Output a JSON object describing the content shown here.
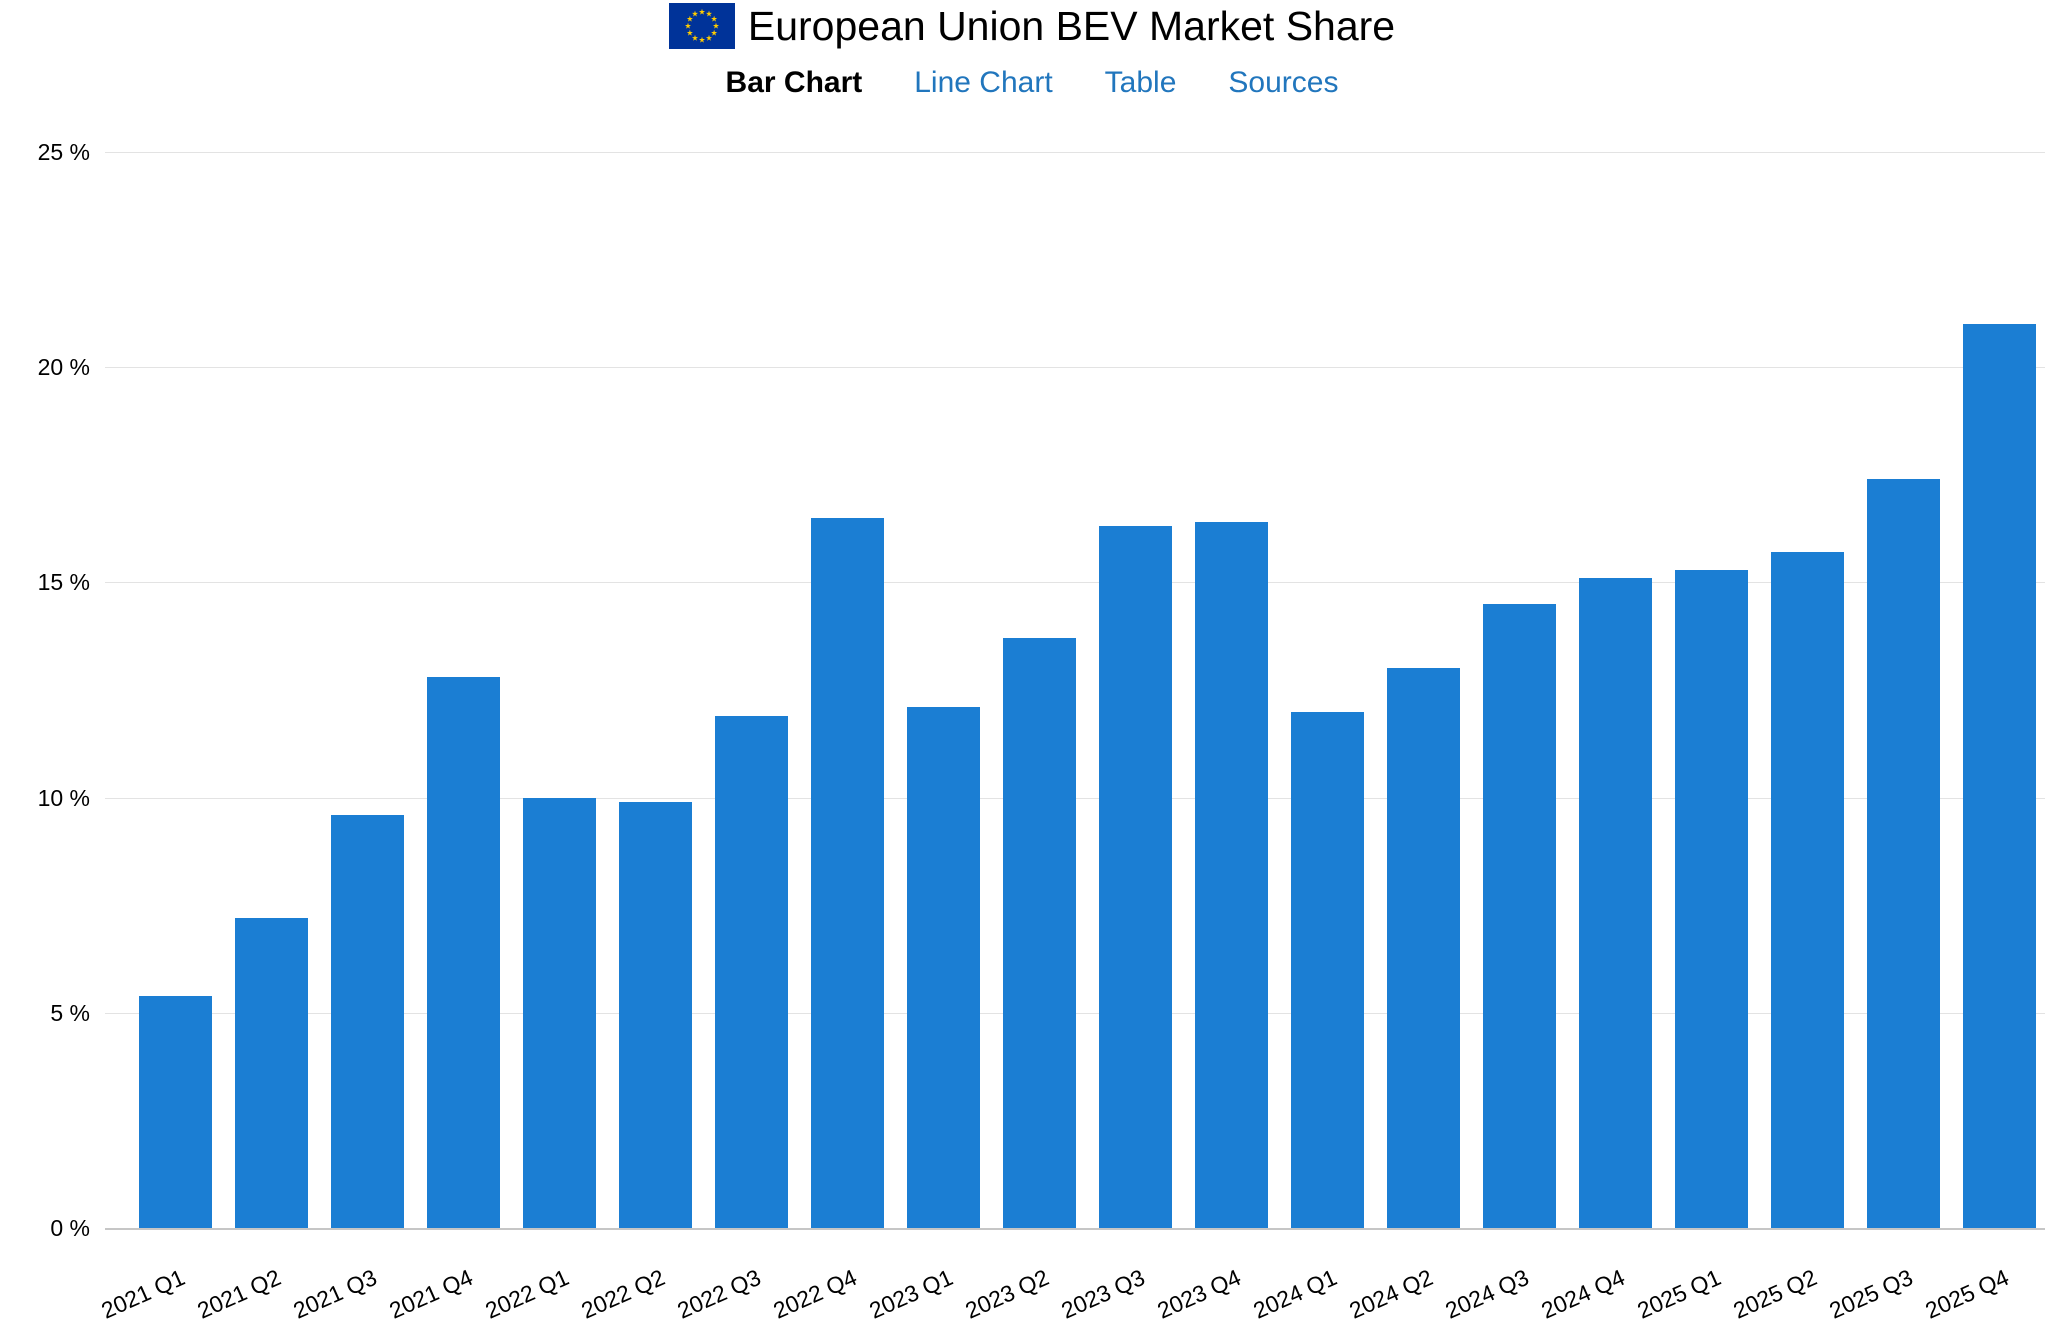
{
  "header": {
    "title": "European Union BEV Market Share"
  },
  "nav": {
    "items": [
      {
        "label": "Bar Chart",
        "active": true
      },
      {
        "label": "Line Chart",
        "active": false
      },
      {
        "label": "Table",
        "active": false
      },
      {
        "label": "Sources",
        "active": false
      }
    ],
    "link_color": "#2176bd",
    "active_color": "#000000"
  },
  "chart_data": {
    "type": "bar",
    "title": "European Union BEV Market Share",
    "categories": [
      "2021 Q1",
      "2021 Q2",
      "2021 Q3",
      "2021 Q4",
      "2022 Q1",
      "2022 Q2",
      "2022 Q3",
      "2022 Q4",
      "2023 Q1",
      "2023 Q2",
      "2023 Q3",
      "2023 Q4",
      "2024 Q1",
      "2024 Q2",
      "2024 Q3",
      "2024 Q4",
      "2025 Q1",
      "2025 Q2",
      "2025 Q3",
      "2025 Q4"
    ],
    "values": [
      5.4,
      7.2,
      9.6,
      12.8,
      10.0,
      9.9,
      11.9,
      16.5,
      12.1,
      13.7,
      16.3,
      16.4,
      12.0,
      13.0,
      14.5,
      15.1,
      15.3,
      15.7,
      17.4,
      21.0
    ],
    "unit": "%",
    "xlabel": "",
    "ylabel": "",
    "ylim": [
      0,
      25
    ],
    "yticks": [
      0,
      5,
      10,
      15,
      20,
      25
    ],
    "ytick_labels": [
      "0 %",
      "5 %",
      "10 %",
      "15 %",
      "20 %",
      "25 %"
    ],
    "grid": true,
    "legend": "none",
    "bar_color": "#1b7ed3",
    "flag_colors": {
      "field": "#003399",
      "stars": "#ffcc00"
    }
  }
}
